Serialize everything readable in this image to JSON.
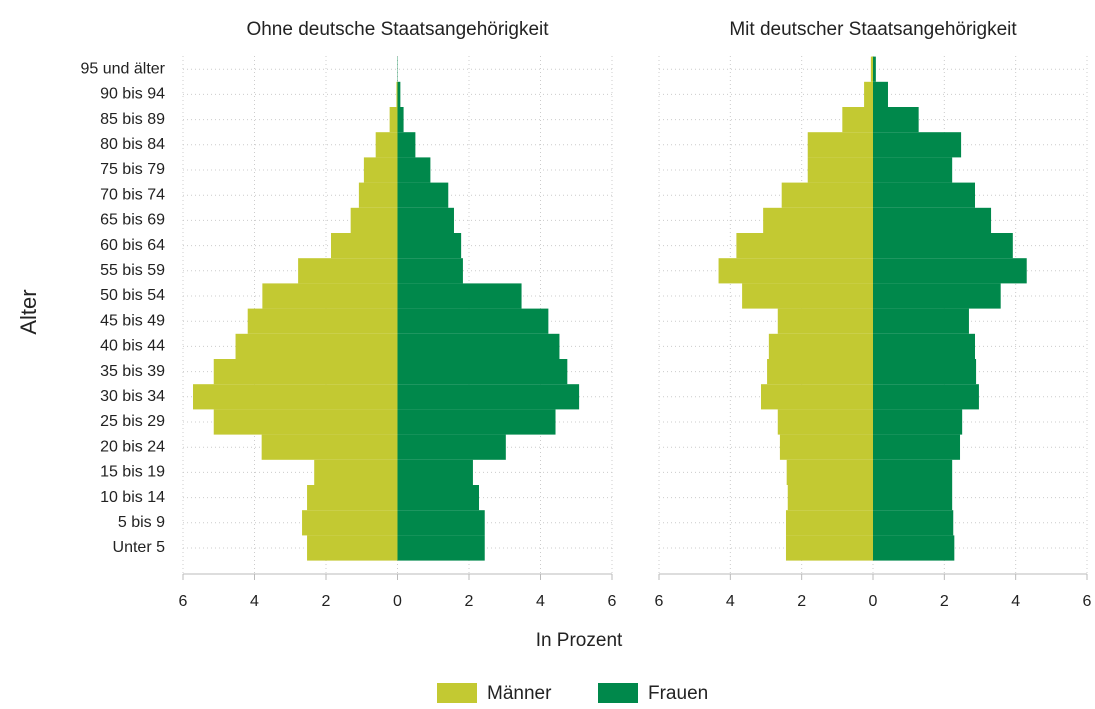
{
  "chart_data": [
    {
      "type": "bar",
      "title": "Ohne deutsche Staatsangehörigkeit",
      "x_label": "In Prozent",
      "y_label": "Alter",
      "grid": true,
      "categories": [
        "Unter 5",
        "5 bis 9",
        "10 bis 14",
        "15 bis 19",
        "20 bis 24",
        "25 bis 29",
        "30 bis 34",
        "35 bis 39",
        "40 bis 44",
        "45 bis 49",
        "50 bis 54",
        "55 bis 59",
        "60 bis 64",
        "65 bis 69",
        "70 bis 74",
        "75 bis 79",
        "80 bis 84",
        "85 bis 89",
        "90 bis 94",
        "95 und älter"
      ],
      "series": [
        {
          "name": "Männer",
          "color": "#c3c932",
          "values": [
            -2.53,
            -2.67,
            -2.53,
            -2.33,
            -3.8,
            -5.14,
            -5.72,
            -5.14,
            -4.53,
            -4.19,
            -3.78,
            -2.78,
            -1.86,
            -1.31,
            -1.08,
            -0.94,
            -0.61,
            -0.22,
            -0.03,
            0
          ]
        },
        {
          "name": "Frauen",
          "color": "#00884b",
          "values": [
            2.44,
            2.44,
            2.28,
            2.11,
            3.03,
            4.42,
            5.08,
            4.75,
            4.53,
            4.22,
            3.47,
            1.83,
            1.78,
            1.58,
            1.42,
            0.92,
            0.5,
            0.17,
            0.08,
            0.01
          ]
        }
      ],
      "xlim": [
        -6,
        6
      ],
      "xticks": [
        {
          "value": -6,
          "label": "6"
        },
        {
          "value": -4,
          "label": "4"
        },
        {
          "value": -2,
          "label": "2"
        },
        0,
        2,
        4,
        6
      ]
    },
    {
      "type": "bar",
      "title": "Mit deutscher Staatsangehörigkeit",
      "grid": true,
      "categories": [
        "Unter 5",
        "5 bis 9",
        "10 bis 14",
        "15 bis 19",
        "20 bis 24",
        "25 bis 29",
        "30 bis 34",
        "35 bis 39",
        "40 bis 44",
        "45 bis 49",
        "50 bis 54",
        "55 bis 59",
        "60 bis 64",
        "65 bis 69",
        "70 bis 74",
        "75 bis 79",
        "80 bis 84",
        "85 bis 89",
        "90 bis 94",
        "95 und älter"
      ],
      "series": [
        {
          "name": "Männer",
          "color": "#c3c932",
          "values": [
            -2.44,
            -2.44,
            -2.39,
            -2.42,
            -2.61,
            -2.67,
            -3.14,
            -2.97,
            -2.92,
            -2.67,
            -3.67,
            -4.33,
            -3.83,
            -3.08,
            -2.56,
            -1.83,
            -1.83,
            -0.86,
            -0.25,
            -0.06
          ]
        },
        {
          "name": "Frauen",
          "color": "#00884b",
          "values": [
            2.28,
            2.25,
            2.22,
            2.22,
            2.44,
            2.5,
            2.97,
            2.89,
            2.86,
            2.69,
            3.58,
            4.31,
            3.92,
            3.31,
            2.86,
            2.22,
            2.47,
            1.28,
            0.42,
            0.08
          ]
        }
      ],
      "xlim": [
        -6,
        6
      ],
      "xticks": [
        {
          "value": -6,
          "label": "6"
        },
        {
          "value": -4,
          "label": "4"
        },
        {
          "value": -2,
          "label": "2"
        },
        0,
        2,
        4,
        6
      ]
    }
  ]
}
